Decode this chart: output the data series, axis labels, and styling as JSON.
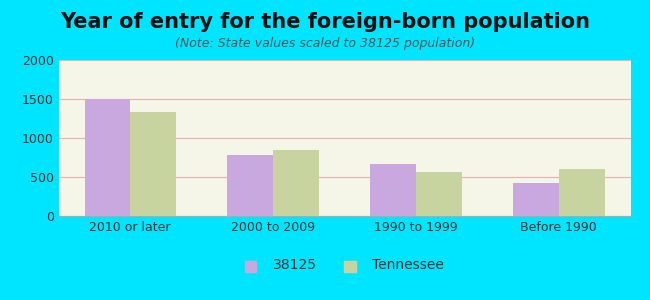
{
  "title": "Year of entry for the foreign-born population",
  "subtitle": "(Note: State values scaled to 38125 population)",
  "categories": [
    "2010 or later",
    "2000 to 2009",
    "1990 to 1999",
    "Before 1990"
  ],
  "values_38125": [
    1497,
    779,
    665,
    421
  ],
  "values_tennessee": [
    1328,
    840,
    567,
    606
  ],
  "bar_color_38125": "#c9a8e0",
  "bar_color_tennessee": "#c8d4a0",
  "background_outer": "#00e5ff",
  "background_inner": "#f5f5e8",
  "ylim": [
    0,
    2000
  ],
  "yticks": [
    0,
    500,
    1000,
    1500,
    2000
  ],
  "legend_label_1": "38125",
  "legend_label_2": "Tennessee",
  "title_fontsize": 15,
  "subtitle_fontsize": 9,
  "tick_fontsize": 9,
  "legend_fontsize": 10
}
